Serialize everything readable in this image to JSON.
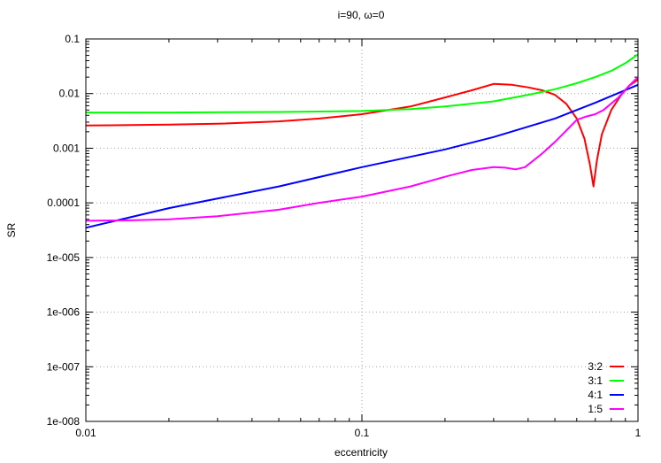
{
  "chart_data": {
    "type": "line",
    "title": "i=90, ω=0",
    "xlabel": "eccentricity",
    "ylabel": "SR",
    "xscale": "log",
    "yscale": "log",
    "xlim": [
      0.01,
      1
    ],
    "ylim": [
      1e-08,
      0.1
    ],
    "grid": "dotted, at major ticks",
    "legend_position": "bottom-right",
    "x_ticks": [
      {
        "value": 0.01,
        "label": "0.01"
      },
      {
        "value": 0.1,
        "label": "0.1"
      },
      {
        "value": 1,
        "label": "1"
      }
    ],
    "y_ticks": [
      {
        "value": 1e-08,
        "label": "1e-008"
      },
      {
        "value": 1e-07,
        "label": "1e-007"
      },
      {
        "value": 1e-06,
        "label": "1e-006"
      },
      {
        "value": 1e-05,
        "label": "1e-005"
      },
      {
        "value": 0.0001,
        "label": "0.0001"
      },
      {
        "value": 0.001,
        "label": "0.001"
      },
      {
        "value": 0.01,
        "label": "0.01"
      },
      {
        "value": 0.1,
        "label": "0.1"
      }
    ],
    "series": [
      {
        "name": "3:2",
        "color": "#ff0000",
        "points": [
          [
            0.01,
            0.0026
          ],
          [
            0.02,
            0.0027
          ],
          [
            0.03,
            0.0028
          ],
          [
            0.05,
            0.0031
          ],
          [
            0.07,
            0.0035
          ],
          [
            0.1,
            0.0042
          ],
          [
            0.15,
            0.0058
          ],
          [
            0.2,
            0.0085
          ],
          [
            0.25,
            0.0115
          ],
          [
            0.3,
            0.015
          ],
          [
            0.35,
            0.0145
          ],
          [
            0.4,
            0.013
          ],
          [
            0.45,
            0.0115
          ],
          [
            0.5,
            0.0095
          ],
          [
            0.55,
            0.0065
          ],
          [
            0.6,
            0.0035
          ],
          [
            0.64,
            0.0015
          ],
          [
            0.67,
            0.0005
          ],
          [
            0.69,
            0.0002
          ],
          [
            0.71,
            0.0006
          ],
          [
            0.74,
            0.0018
          ],
          [
            0.8,
            0.005
          ],
          [
            0.87,
            0.0095
          ],
          [
            0.93,
            0.014
          ],
          [
            1.0,
            0.018
          ]
        ]
      },
      {
        "name": "3:1",
        "color": "#00ff00",
        "points": [
          [
            0.01,
            0.0045
          ],
          [
            0.02,
            0.0045
          ],
          [
            0.05,
            0.0046
          ],
          [
            0.1,
            0.0048
          ],
          [
            0.15,
            0.0052
          ],
          [
            0.2,
            0.0058
          ],
          [
            0.3,
            0.0072
          ],
          [
            0.4,
            0.0095
          ],
          [
            0.5,
            0.012
          ],
          [
            0.6,
            0.0155
          ],
          [
            0.7,
            0.02
          ],
          [
            0.8,
            0.026
          ],
          [
            0.9,
            0.036
          ],
          [
            1.0,
            0.052
          ]
        ]
      },
      {
        "name": "4:1",
        "color": "#0000ff",
        "points": [
          [
            0.01,
            3.5e-05
          ],
          [
            0.02,
            8e-05
          ],
          [
            0.05,
            0.0002
          ],
          [
            0.1,
            0.00045
          ],
          [
            0.2,
            0.00095
          ],
          [
            0.3,
            0.0016
          ],
          [
            0.5,
            0.0035
          ],
          [
            0.7,
            0.0068
          ],
          [
            1.0,
            0.0145
          ]
        ]
      },
      {
        "name": "1:5",
        "color": "#ff00ff",
        "points": [
          [
            0.01,
            4.7e-05
          ],
          [
            0.015,
            4.8e-05
          ],
          [
            0.02,
            5e-05
          ],
          [
            0.03,
            5.7e-05
          ],
          [
            0.05,
            7.5e-05
          ],
          [
            0.07,
            0.0001
          ],
          [
            0.1,
            0.00013
          ],
          [
            0.15,
            0.0002
          ],
          [
            0.2,
            0.0003
          ],
          [
            0.25,
            0.0004
          ],
          [
            0.3,
            0.00045
          ],
          [
            0.33,
            0.00044
          ],
          [
            0.36,
            0.00041
          ],
          [
            0.39,
            0.00045
          ],
          [
            0.45,
            0.0008
          ],
          [
            0.5,
            0.0013
          ],
          [
            0.55,
            0.0021
          ],
          [
            0.6,
            0.0033
          ],
          [
            0.65,
            0.0038
          ],
          [
            0.7,
            0.0042
          ],
          [
            0.75,
            0.005
          ],
          [
            0.85,
            0.0085
          ],
          [
            0.93,
            0.014
          ],
          [
            1.0,
            0.02
          ]
        ]
      }
    ]
  }
}
